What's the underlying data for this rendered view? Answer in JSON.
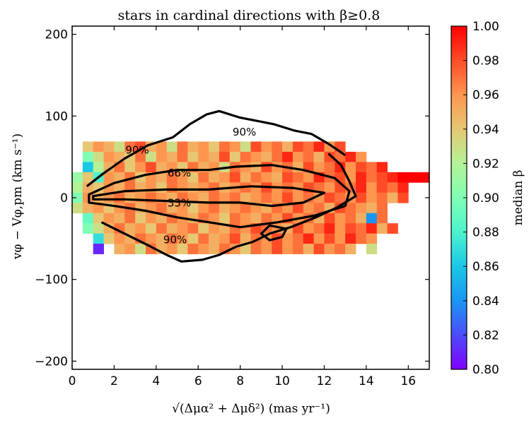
{
  "chart_data": {
    "type": "heatmap",
    "title": "stars in cardinal directions with β≥0.8",
    "xlabel": "√(Δμα² + Δμδ²)  (mas yr⁻¹)",
    "ylabel": "vφ − Vφ,pm  (km s⁻¹)",
    "xlim": [
      0,
      17
    ],
    "ylim": [
      -210,
      210
    ],
    "xticks": [
      "0",
      "2",
      "4",
      "6",
      "8",
      "10",
      "12",
      "14",
      "16"
    ],
    "yticks": [
      "−200",
      "−100",
      "0",
      "100",
      "200"
    ],
    "colorbar": {
      "label": "median β",
      "range": [
        0.8,
        1.0
      ],
      "ticks": [
        "0.80",
        "0.82",
        "0.84",
        "0.86",
        "0.88",
        "0.90",
        "0.92",
        "0.94",
        "0.96",
        "0.98",
        "1.00"
      ],
      "colors": [
        "#7f00ff",
        "#4c4cfc",
        "#1996f3",
        "#1ac7e6",
        "#4df3ce",
        "#80ffb4",
        "#b3f396",
        "#e6c774",
        "#ff964f",
        "#ff4c27",
        "#ff0000"
      ]
    },
    "cell_width": 0.5,
    "cell_height": 12.5,
    "cells_note": "cells are [x_center, y_center, median_beta]",
    "cells": [
      [
        0.75,
        62.5,
        0.94
      ],
      [
        1.25,
        62.5,
        0.96
      ],
      [
        1.75,
        62.5,
        0.95
      ],
      [
        2.25,
        62.5,
        0.93
      ],
      [
        2.75,
        62.5,
        0.97
      ],
      [
        3.25,
        62.5,
        0.98
      ],
      [
        3.75,
        62.5,
        0.95
      ],
      [
        4.25,
        62.5,
        0.96
      ],
      [
        4.75,
        62.5,
        0.93
      ],
      [
        5.25,
        62.5,
        0.97
      ],
      [
        5.75,
        62.5,
        0.95
      ],
      [
        6.25,
        62.5,
        0.96
      ],
      [
        6.75,
        62.5,
        0.94
      ],
      [
        7.25,
        62.5,
        0.97
      ],
      [
        7.75,
        62.5,
        0.96
      ],
      [
        8.25,
        62.5,
        0.93
      ],
      [
        8.75,
        62.5,
        0.98
      ],
      [
        9.25,
        62.5,
        0.96
      ],
      [
        9.75,
        62.5,
        0.97
      ],
      [
        10.25,
        62.5,
        0.95
      ],
      [
        10.75,
        62.5,
        0.98
      ],
      [
        11.25,
        62.5,
        0.97
      ],
      [
        11.75,
        62.5,
        0.99
      ],
      [
        12.25,
        62.5,
        0.96
      ],
      [
        12.75,
        62.5,
        0.98
      ],
      [
        0.75,
        50,
        0.9
      ],
      [
        1.25,
        50,
        0.93
      ],
      [
        1.75,
        50,
        0.96
      ],
      [
        2.25,
        50,
        0.95
      ],
      [
        2.75,
        50,
        0.94
      ],
      [
        3.25,
        50,
        0.97
      ],
      [
        3.75,
        50,
        0.93
      ],
      [
        4.25,
        50,
        0.96
      ],
      [
        4.75,
        50,
        0.95
      ],
      [
        5.25,
        50,
        0.97
      ],
      [
        5.75,
        50,
        0.94
      ],
      [
        6.25,
        50,
        0.96
      ],
      [
        6.75,
        50,
        0.95
      ],
      [
        7.25,
        50,
        0.98
      ],
      [
        7.75,
        50,
        0.94
      ],
      [
        8.25,
        50,
        0.97
      ],
      [
        8.75,
        50,
        0.96
      ],
      [
        9.25,
        50,
        0.95
      ],
      [
        9.75,
        50,
        0.97
      ],
      [
        10.25,
        50,
        0.99
      ],
      [
        10.75,
        50,
        0.96
      ],
      [
        11.25,
        50,
        0.97
      ],
      [
        11.75,
        50,
        0.95
      ],
      [
        12.25,
        50,
        0.98
      ],
      [
        12.75,
        50,
        0.97
      ],
      [
        13.25,
        50,
        0.99
      ],
      [
        13.75,
        50,
        0.96
      ],
      [
        0.75,
        37.5,
        0.86
      ],
      [
        1.25,
        37.5,
        0.92
      ],
      [
        1.75,
        37.5,
        0.95
      ],
      [
        2.25,
        37.5,
        0.97
      ],
      [
        2.75,
        37.5,
        0.94
      ],
      [
        3.25,
        37.5,
        0.96
      ],
      [
        3.75,
        37.5,
        0.98
      ],
      [
        4.25,
        37.5,
        0.95
      ],
      [
        4.75,
        37.5,
        0.96
      ],
      [
        5.25,
        37.5,
        0.94
      ],
      [
        5.75,
        37.5,
        0.97
      ],
      [
        6.25,
        37.5,
        0.95
      ],
      [
        6.75,
        37.5,
        0.96
      ],
      [
        7.25,
        37.5,
        0.93
      ],
      [
        7.75,
        37.5,
        0.97
      ],
      [
        8.25,
        37.5,
        0.96
      ],
      [
        8.75,
        37.5,
        0.95
      ],
      [
        9.25,
        37.5,
        0.98
      ],
      [
        9.75,
        37.5,
        0.96
      ],
      [
        10.25,
        37.5,
        0.97
      ],
      [
        10.75,
        37.5,
        0.95
      ],
      [
        11.25,
        37.5,
        0.98
      ],
      [
        11.75,
        37.5,
        0.96
      ],
      [
        12.25,
        37.5,
        0.97
      ],
      [
        12.75,
        37.5,
        0.99
      ],
      [
        13.25,
        37.5,
        0.96
      ],
      [
        13.75,
        37.5,
        0.98
      ],
      [
        14.25,
        37.5,
        0.97
      ],
      [
        14.75,
        37.5,
        0.99
      ],
      [
        0.25,
        25,
        0.91
      ],
      [
        0.75,
        25,
        0.94
      ],
      [
        1.25,
        25,
        0.88
      ],
      [
        1.75,
        25,
        0.96
      ],
      [
        2.25,
        25,
        0.95
      ],
      [
        2.75,
        25,
        0.97
      ],
      [
        3.25,
        25,
        0.94
      ],
      [
        3.75,
        25,
        0.96
      ],
      [
        4.25,
        25,
        0.95
      ],
      [
        4.75,
        25,
        0.97
      ],
      [
        5.25,
        25,
        0.96
      ],
      [
        5.75,
        25,
        0.94
      ],
      [
        6.25,
        25,
        0.97
      ],
      [
        6.75,
        25,
        0.95
      ],
      [
        7.25,
        25,
        0.96
      ],
      [
        7.75,
        25,
        0.98
      ],
      [
        8.25,
        25,
        0.95
      ],
      [
        8.75,
        25,
        0.97
      ],
      [
        9.25,
        25,
        0.96
      ],
      [
        9.75,
        25,
        0.95
      ],
      [
        10.25,
        25,
        0.98
      ],
      [
        10.75,
        25,
        0.97
      ],
      [
        11.25,
        25,
        0.96
      ],
      [
        11.75,
        25,
        0.99
      ],
      [
        12.25,
        25,
        0.97
      ],
      [
        12.75,
        25,
        0.98
      ],
      [
        13.25,
        25,
        0.96
      ],
      [
        13.75,
        25,
        0.99
      ],
      [
        14.25,
        25,
        0.97
      ],
      [
        14.75,
        25,
        0.98
      ],
      [
        15.25,
        25,
        0.99
      ],
      [
        15.75,
        25,
        1.0
      ],
      [
        16.25,
        25,
        1.0
      ],
      [
        16.75,
        25,
        1.0
      ],
      [
        0.25,
        12.5,
        0.92
      ],
      [
        0.75,
        12.5,
        0.95
      ],
      [
        1.25,
        12.5,
        0.94
      ],
      [
        1.75,
        12.5,
        0.96
      ],
      [
        2.25,
        12.5,
        0.95
      ],
      [
        2.75,
        12.5,
        0.97
      ],
      [
        3.25,
        12.5,
        0.95
      ],
      [
        3.75,
        12.5,
        0.96
      ],
      [
        4.25,
        12.5,
        0.94
      ],
      [
        4.75,
        12.5,
        0.97
      ],
      [
        5.25,
        12.5,
        0.96
      ],
      [
        5.75,
        12.5,
        0.95
      ],
      [
        6.25,
        12.5,
        0.96
      ],
      [
        6.75,
        12.5,
        0.97
      ],
      [
        7.25,
        12.5,
        0.95
      ],
      [
        7.75,
        12.5,
        0.96
      ],
      [
        8.25,
        12.5,
        0.97
      ],
      [
        8.75,
        12.5,
        0.96
      ],
      [
        9.25,
        12.5,
        0.98
      ],
      [
        9.75,
        12.5,
        0.96
      ],
      [
        10.25,
        12.5,
        0.97
      ],
      [
        10.75,
        12.5,
        0.96
      ],
      [
        11.25,
        12.5,
        0.98
      ],
      [
        11.75,
        12.5,
        0.97
      ],
      [
        12.25,
        12.5,
        0.96
      ],
      [
        12.75,
        12.5,
        0.98
      ],
      [
        13.25,
        12.5,
        0.97
      ],
      [
        13.75,
        12.5,
        0.99
      ],
      [
        14.25,
        12.5,
        0.96
      ],
      [
        14.75,
        12.5,
        0.98
      ],
      [
        15.25,
        12.5,
        0.97
      ],
      [
        15.75,
        12.5,
        0.99
      ],
      [
        0.25,
        0,
        0.9
      ],
      [
        0.75,
        0,
        0.96
      ],
      [
        1.25,
        0,
        0.95
      ],
      [
        1.75,
        0,
        0.96
      ],
      [
        2.25,
        0,
        0.97
      ],
      [
        2.75,
        0,
        0.95
      ],
      [
        3.25,
        0,
        0.96
      ],
      [
        3.75,
        0,
        0.97
      ],
      [
        4.25,
        0,
        0.96
      ],
      [
        4.75,
        0,
        0.95
      ],
      [
        5.25,
        0,
        0.97
      ],
      [
        5.75,
        0,
        0.96
      ],
      [
        6.25,
        0,
        0.95
      ],
      [
        6.75,
        0,
        0.97
      ],
      [
        7.25,
        0,
        0.96
      ],
      [
        7.75,
        0,
        0.97
      ],
      [
        8.25,
        0,
        0.95
      ],
      [
        8.75,
        0,
        0.96
      ],
      [
        9.25,
        0,
        0.97
      ],
      [
        9.75,
        0,
        0.96
      ],
      [
        10.25,
        0,
        0.98
      ],
      [
        10.75,
        0,
        0.96
      ],
      [
        11.25,
        0,
        0.97
      ],
      [
        11.75,
        0,
        0.96
      ],
      [
        12.25,
        0,
        0.98
      ],
      [
        12.75,
        0,
        0.97
      ],
      [
        13.25,
        0,
        0.96
      ],
      [
        13.75,
        0,
        0.98
      ],
      [
        14.25,
        0,
        0.96
      ],
      [
        14.75,
        0,
        0.97
      ],
      [
        15.25,
        0,
        0.95
      ],
      [
        15.75,
        0,
        0.98
      ],
      [
        0.25,
        -12.5,
        0.93
      ],
      [
        0.75,
        -12.5,
        0.95
      ],
      [
        1.25,
        -12.5,
        0.96
      ],
      [
        1.75,
        -12.5,
        0.94
      ],
      [
        2.25,
        -12.5,
        0.96
      ],
      [
        2.75,
        -12.5,
        0.97
      ],
      [
        3.25,
        -12.5,
        0.95
      ],
      [
        3.75,
        -12.5,
        0.96
      ],
      [
        4.25,
        -12.5,
        0.97
      ],
      [
        4.75,
        -12.5,
        0.95
      ],
      [
        5.25,
        -12.5,
        0.96
      ],
      [
        5.75,
        -12.5,
        0.94
      ],
      [
        6.25,
        -12.5,
        0.96
      ],
      [
        6.75,
        -12.5,
        0.97
      ],
      [
        7.25,
        -12.5,
        0.95
      ],
      [
        7.75,
        -12.5,
        0.96
      ],
      [
        8.25,
        -12.5,
        0.97
      ],
      [
        8.75,
        -12.5,
        0.96
      ],
      [
        9.25,
        -12.5,
        0.95
      ],
      [
        9.75,
        -12.5,
        0.97
      ],
      [
        10.25,
        -12.5,
        0.96
      ],
      [
        10.75,
        -12.5,
        0.98
      ],
      [
        11.25,
        -12.5,
        0.96
      ],
      [
        11.75,
        -12.5,
        0.97
      ],
      [
        12.25,
        -12.5,
        0.95
      ],
      [
        12.75,
        -12.5,
        0.98
      ],
      [
        13.25,
        -12.5,
        0.97
      ],
      [
        13.75,
        -12.5,
        0.96
      ],
      [
        14.25,
        -12.5,
        0.95
      ],
      [
        14.75,
        -12.5,
        0.97
      ],
      [
        0.75,
        -25,
        0.89
      ],
      [
        1.25,
        -25,
        0.94
      ],
      [
        1.75,
        -25,
        0.96
      ],
      [
        2.25,
        -25,
        0.95
      ],
      [
        2.75,
        -25,
        0.97
      ],
      [
        3.25,
        -25,
        0.94
      ],
      [
        3.75,
        -25,
        0.96
      ],
      [
        4.25,
        -25,
        0.95
      ],
      [
        4.75,
        -25,
        0.97
      ],
      [
        5.25,
        -25,
        0.96
      ],
      [
        5.75,
        -25,
        0.95
      ],
      [
        6.25,
        -25,
        0.97
      ],
      [
        6.75,
        -25,
        0.96
      ],
      [
        7.25,
        -25,
        0.94
      ],
      [
        7.75,
        -25,
        0.97
      ],
      [
        8.25,
        -25,
        0.96
      ],
      [
        8.75,
        -25,
        0.95
      ],
      [
        9.25,
        -25,
        0.97
      ],
      [
        9.75,
        -25,
        0.96
      ],
      [
        10.25,
        -25,
        0.98
      ],
      [
        10.75,
        -25,
        0.96
      ],
      [
        11.25,
        -25,
        0.97
      ],
      [
        11.75,
        -25,
        0.95
      ],
      [
        12.25,
        -25,
        0.98
      ],
      [
        12.75,
        -25,
        0.96
      ],
      [
        13.25,
        -25,
        0.97
      ],
      [
        13.75,
        -25,
        0.95
      ],
      [
        14.25,
        -25,
        0.84
      ],
      [
        14.75,
        -25,
        0.97
      ],
      [
        0.75,
        -37.5,
        0.9
      ],
      [
        1.25,
        -37.5,
        0.93
      ],
      [
        1.75,
        -37.5,
        0.95
      ],
      [
        2.25,
        -37.5,
        0.97
      ],
      [
        2.75,
        -37.5,
        0.95
      ],
      [
        3.25,
        -37.5,
        0.96
      ],
      [
        3.75,
        -37.5,
        0.94
      ],
      [
        4.25,
        -37.5,
        0.97
      ],
      [
        4.75,
        -37.5,
        0.95
      ],
      [
        5.25,
        -37.5,
        0.96
      ],
      [
        5.75,
        -37.5,
        0.97
      ],
      [
        6.25,
        -37.5,
        0.94
      ],
      [
        6.75,
        -37.5,
        0.96
      ],
      [
        7.25,
        -37.5,
        0.95
      ],
      [
        7.75,
        -37.5,
        0.97
      ],
      [
        8.25,
        -37.5,
        0.96
      ],
      [
        8.75,
        -37.5,
        0.98
      ],
      [
        9.25,
        -37.5,
        0.97
      ],
      [
        9.75,
        -37.5,
        0.96
      ],
      [
        10.25,
        -37.5,
        0.95
      ],
      [
        10.75,
        -37.5,
        0.98
      ],
      [
        11.25,
        -37.5,
        0.96
      ],
      [
        11.75,
        -37.5,
        0.97
      ],
      [
        12.25,
        -37.5,
        0.99
      ],
      [
        12.75,
        -37.5,
        0.96
      ],
      [
        13.25,
        -37.5,
        0.98
      ],
      [
        13.75,
        -37.5,
        0.97
      ],
      [
        14.25,
        -37.5,
        0.99
      ],
      [
        14.75,
        -37.5,
        0.95
      ],
      [
        15.25,
        -37.5,
        0.98
      ],
      [
        1.25,
        -50,
        0.87
      ],
      [
        1.75,
        -50,
        0.94
      ],
      [
        2.25,
        -50,
        0.96
      ],
      [
        2.75,
        -50,
        0.95
      ],
      [
        3.25,
        -50,
        0.97
      ],
      [
        3.75,
        -50,
        0.96
      ],
      [
        4.25,
        -50,
        0.95
      ],
      [
        4.75,
        -50,
        0.97
      ],
      [
        5.25,
        -50,
        0.96
      ],
      [
        5.75,
        -50,
        0.94
      ],
      [
        6.25,
        -50,
        0.97
      ],
      [
        6.75,
        -50,
        0.95
      ],
      [
        7.25,
        -50,
        0.96
      ],
      [
        7.75,
        -50,
        0.98
      ],
      [
        8.25,
        -50,
        0.95
      ],
      [
        8.75,
        -50,
        0.97
      ],
      [
        9.25,
        -50,
        0.96
      ],
      [
        9.75,
        -50,
        0.98
      ],
      [
        10.25,
        -50,
        0.96
      ],
      [
        10.75,
        -50,
        0.97
      ],
      [
        11.25,
        -50,
        0.99
      ],
      [
        11.75,
        -50,
        0.96
      ],
      [
        12.25,
        -50,
        0.98
      ],
      [
        12.75,
        -50,
        0.96
      ],
      [
        13.25,
        -50,
        0.99
      ],
      [
        13.75,
        -50,
        0.97
      ],
      [
        14.25,
        -50,
        0.96
      ],
      [
        1.25,
        -62.5,
        0.81
      ],
      [
        2.25,
        -62.5,
        0.95
      ],
      [
        2.75,
        -62.5,
        0.96
      ],
      [
        3.25,
        -62.5,
        0.93
      ],
      [
        3.75,
        -62.5,
        0.97
      ],
      [
        4.25,
        -62.5,
        0.95
      ],
      [
        4.75,
        -62.5,
        0.96
      ],
      [
        5.25,
        -62.5,
        0.94
      ],
      [
        5.75,
        -62.5,
        0.97
      ],
      [
        6.25,
        -62.5,
        0.96
      ],
      [
        6.75,
        -62.5,
        0.95
      ],
      [
        7.25,
        -62.5,
        0.97
      ],
      [
        7.75,
        -62.5,
        0.96
      ],
      [
        8.25,
        -62.5,
        0.94
      ],
      [
        8.75,
        -62.5,
        0.97
      ],
      [
        9.25,
        -62.5,
        0.96
      ],
      [
        9.75,
        -62.5,
        0.98
      ],
      [
        10.25,
        -62.5,
        0.96
      ],
      [
        10.75,
        -62.5,
        0.97
      ],
      [
        11.25,
        -62.5,
        0.95
      ],
      [
        11.75,
        -62.5,
        0.98
      ],
      [
        12.25,
        -62.5,
        0.96
      ],
      [
        12.75,
        -62.5,
        0.97
      ],
      [
        13.25,
        -62.5,
        0.95
      ],
      [
        14.25,
        -62.5,
        0.93
      ]
    ],
    "contours": [
      {
        "label": "33%",
        "level": 0.33
      },
      {
        "label": "66%",
        "level": 0.66
      },
      {
        "label": "90%",
        "level": 0.9
      },
      {
        "label": "90%",
        "level": 0.9
      },
      {
        "label": "90%",
        "level": 0.9
      }
    ]
  }
}
